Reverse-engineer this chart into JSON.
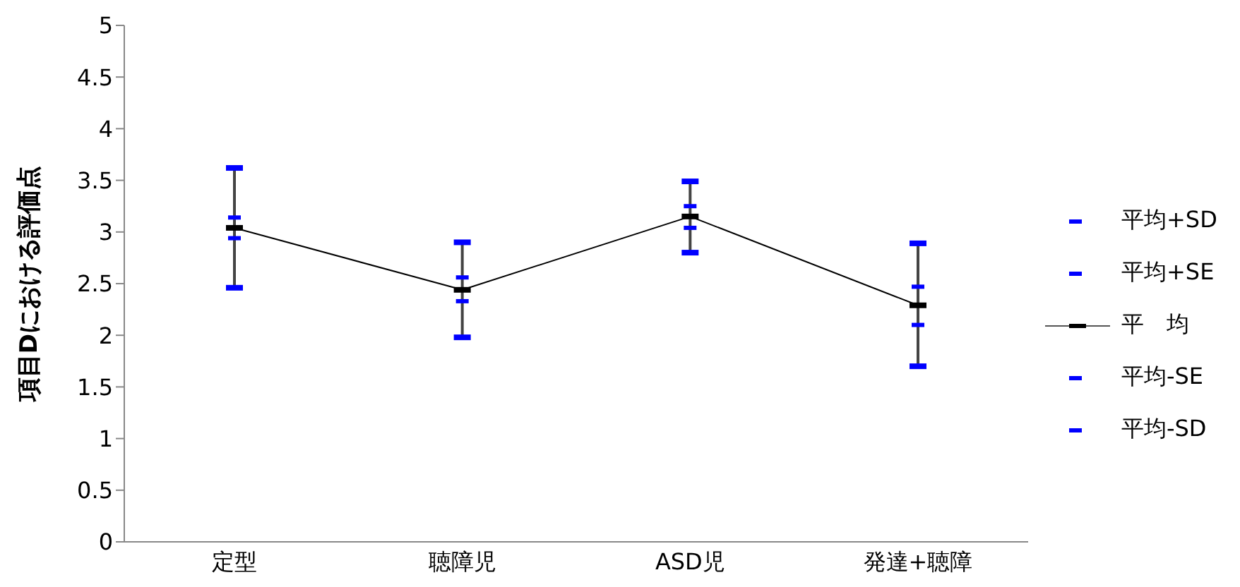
{
  "chart_data": {
    "type": "line",
    "ylabel": "項目Dにおける評価点",
    "categories": [
      "定型",
      "聴障児",
      "ASD児",
      "発達+聴障"
    ],
    "ylim": [
      0,
      5
    ],
    "yticks": [
      0,
      0.5,
      1,
      1.5,
      2,
      2.5,
      3,
      3.5,
      4,
      4.5,
      5
    ],
    "grid": false,
    "legend": "right",
    "series": [
      {
        "name": "平均+SD",
        "type": "scatter",
        "color": "#0000ff",
        "values": [
          3.62,
          2.9,
          3.49,
          2.89
        ]
      },
      {
        "name": "平均+SE",
        "type": "scatter",
        "color": "#0000ff",
        "values": [
          3.14,
          2.56,
          3.25,
          2.47
        ]
      },
      {
        "name": "平　均",
        "type": "line",
        "marker": "square",
        "color": "#000000",
        "values": [
          3.04,
          2.44,
          3.15,
          2.29
        ]
      },
      {
        "name": "平均-SE",
        "type": "scatter",
        "color": "#0000ff",
        "values": [
          2.94,
          2.33,
          3.04,
          2.1
        ]
      },
      {
        "name": "平均-SD",
        "type": "scatter",
        "color": "#0000ff",
        "values": [
          2.46,
          1.98,
          2.8,
          1.7
        ]
      }
    ]
  }
}
